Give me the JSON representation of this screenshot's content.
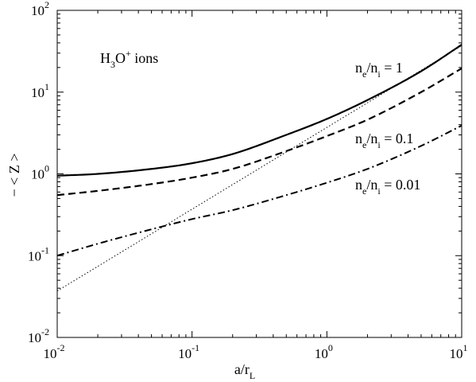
{
  "chart_data": {
    "type": "line",
    "xscale": "log",
    "yscale": "log",
    "xlim": [
      0.01,
      10
    ],
    "ylim": [
      0.01,
      100
    ],
    "grid": false,
    "xlabel": {
      "main": "a/r",
      "sub": "L"
    },
    "ylabel": "− < Z >",
    "x_ticks": [
      {
        "base": "10",
        "exp": "-2",
        "value": 0.01
      },
      {
        "base": "10",
        "exp": "-1",
        "value": 0.1
      },
      {
        "base": "10",
        "exp": "0",
        "value": 1
      },
      {
        "base": "10",
        "exp": "1",
        "value": 10
      }
    ],
    "y_ticks": [
      {
        "base": "10",
        "exp": "-2",
        "value": 0.01
      },
      {
        "base": "10",
        "exp": "-1",
        "value": 0.1
      },
      {
        "base": "10",
        "exp": "0",
        "value": 1
      },
      {
        "base": "10",
        "exp": "1",
        "value": 10
      },
      {
        "base": "10",
        "exp": "2",
        "value": 100
      }
    ],
    "annotation_title": {
      "part1": "H",
      "sub": "3",
      "part2": "O",
      "sup": "+",
      "part3": " ions"
    },
    "series": [
      {
        "label": {
          "n1": "n",
          "s1": "e",
          "mid": "/n",
          "s2": "i",
          "rest": " = 1"
        },
        "style": "solid",
        "x": [
          0.01,
          0.02,
          0.05,
          0.1,
          0.2,
          0.5,
          1,
          2,
          5,
          10
        ],
        "y": [
          0.95,
          1.0,
          1.15,
          1.35,
          1.75,
          3.0,
          4.7,
          8.0,
          18.0,
          38.0
        ]
      },
      {
        "label": {
          "n1": "n",
          "s1": "e",
          "mid": "/n",
          "s2": "i",
          "rest": " = 0.1"
        },
        "style": "dashed",
        "x": [
          0.01,
          0.02,
          0.05,
          0.1,
          0.2,
          0.5,
          1,
          2,
          5,
          10
        ],
        "y": [
          0.55,
          0.62,
          0.75,
          0.9,
          1.15,
          1.9,
          2.9,
          4.6,
          10.0,
          19.5
        ]
      },
      {
        "label": {
          "n1": "n",
          "s1": "e",
          "mid": "/n",
          "s2": "i",
          "rest": " = 0.01"
        },
        "style": "dashdot",
        "x": [
          0.01,
          0.02,
          0.05,
          0.1,
          0.2,
          0.5,
          1,
          2,
          5,
          10
        ],
        "y": [
          0.1,
          0.14,
          0.21,
          0.28,
          0.36,
          0.55,
          0.78,
          1.15,
          2.2,
          3.9
        ]
      },
      {
        "label": null,
        "style": "dotted",
        "x": [
          0.01,
          10
        ],
        "y": [
          0.037,
          37
        ]
      }
    ]
  }
}
